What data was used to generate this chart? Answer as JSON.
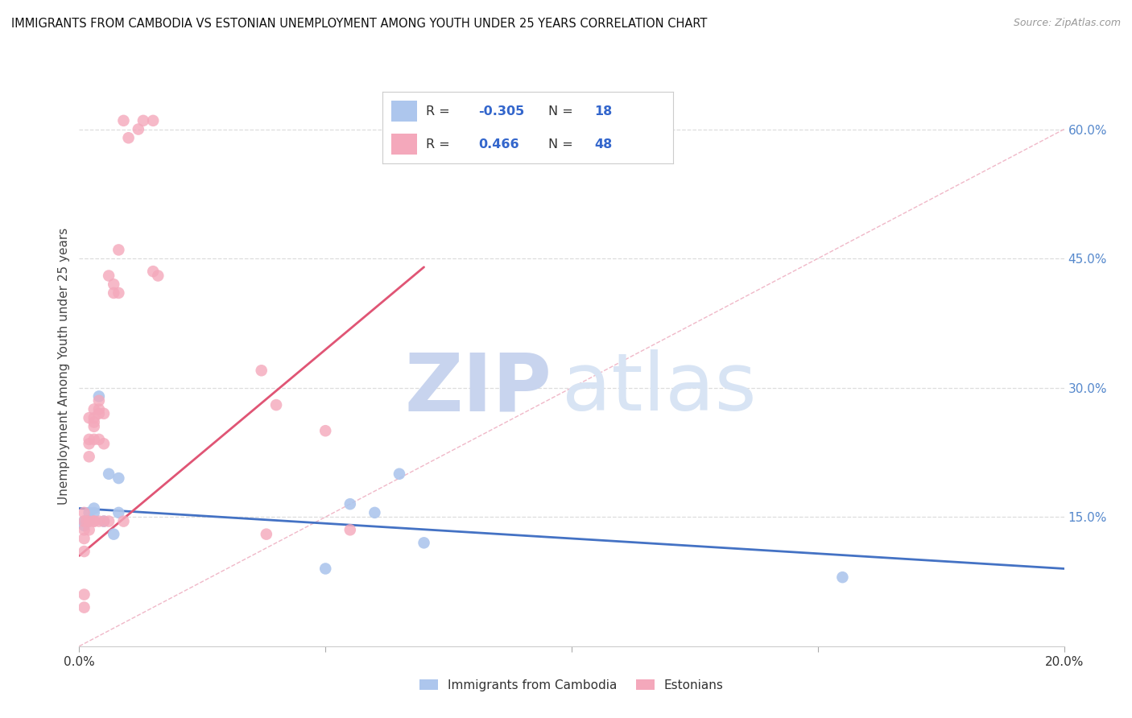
{
  "title": "IMMIGRANTS FROM CAMBODIA VS ESTONIAN UNEMPLOYMENT AMONG YOUTH UNDER 25 YEARS CORRELATION CHART",
  "source": "Source: ZipAtlas.com",
  "ylabel": "Unemployment Among Youth under 25 years",
  "ylabel_right_ticks": [
    "15.0%",
    "30.0%",
    "45.0%",
    "60.0%"
  ],
  "ylabel_right_vals": [
    0.15,
    0.3,
    0.45,
    0.6
  ],
  "xmin": 0.0,
  "xmax": 0.2,
  "ymin": 0.0,
  "ymax": 0.65,
  "blue_R": -0.305,
  "blue_N": 18,
  "pink_R": 0.466,
  "pink_N": 48,
  "blue_scatter_x": [
    0.001,
    0.001,
    0.002,
    0.002,
    0.003,
    0.003,
    0.004,
    0.005,
    0.006,
    0.007,
    0.008,
    0.008,
    0.05,
    0.055,
    0.06,
    0.065,
    0.07,
    0.155
  ],
  "blue_scatter_y": [
    0.145,
    0.14,
    0.145,
    0.155,
    0.155,
    0.16,
    0.29,
    0.145,
    0.2,
    0.13,
    0.195,
    0.155,
    0.09,
    0.165,
    0.155,
    0.2,
    0.12,
    0.08
  ],
  "pink_scatter_x": [
    0.001,
    0.001,
    0.001,
    0.001,
    0.001,
    0.001,
    0.001,
    0.0015,
    0.002,
    0.002,
    0.002,
    0.002,
    0.002,
    0.002,
    0.003,
    0.003,
    0.003,
    0.003,
    0.003,
    0.003,
    0.003,
    0.004,
    0.004,
    0.004,
    0.004,
    0.004,
    0.005,
    0.005,
    0.005,
    0.006,
    0.006,
    0.007,
    0.007,
    0.008,
    0.008,
    0.009,
    0.009,
    0.01,
    0.012,
    0.013,
    0.015,
    0.015,
    0.016,
    0.037,
    0.038,
    0.04,
    0.05,
    0.055
  ],
  "pink_scatter_y": [
    0.11,
    0.125,
    0.135,
    0.145,
    0.155,
    0.06,
    0.045,
    0.145,
    0.135,
    0.145,
    0.22,
    0.235,
    0.24,
    0.265,
    0.145,
    0.24,
    0.255,
    0.26,
    0.265,
    0.275,
    0.145,
    0.145,
    0.24,
    0.27,
    0.275,
    0.285,
    0.27,
    0.235,
    0.145,
    0.43,
    0.145,
    0.42,
    0.41,
    0.41,
    0.46,
    0.61,
    0.145,
    0.59,
    0.6,
    0.61,
    0.61,
    0.435,
    0.43,
    0.32,
    0.13,
    0.28,
    0.25,
    0.135
  ],
  "blue_line_x": [
    0.0,
    0.2
  ],
  "blue_line_y": [
    0.16,
    0.09
  ],
  "pink_line_x": [
    0.0,
    0.07
  ],
  "pink_line_y": [
    0.105,
    0.44
  ],
  "diag_line_x": [
    0.0,
    0.2
  ],
  "diag_line_y": [
    0.0,
    0.6
  ],
  "blue_color": "#adc6ed",
  "pink_color": "#f4a8bb",
  "blue_line_color": "#4472c4",
  "pink_line_color": "#e05575",
  "diag_line_color": "#f0b8c8",
  "watermark_zip": "ZIP",
  "watermark_atlas": "atlas",
  "watermark_color_zip": "#c8d4ee",
  "watermark_color_atlas": "#d8e4f4",
  "background_color": "#ffffff",
  "grid_color": "#dddddd",
  "legend_label_blue": "Immigrants from Cambodia",
  "legend_label_pink": "Estonians"
}
